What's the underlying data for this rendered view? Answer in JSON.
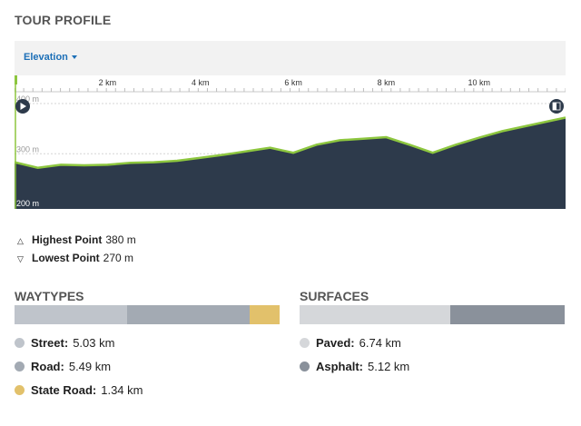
{
  "title": "TOUR PROFILE",
  "profile": {
    "dropdown_label": "Elevation",
    "x_ticks": [
      "2 km",
      "4 km",
      "6 km",
      "8 km",
      "10 km"
    ],
    "y_ticks": [
      "400 m",
      "300 m",
      "200 m"
    ],
    "icons": {
      "play": "play-icon",
      "finish": "finish-flag-icon"
    },
    "colors": {
      "fill": "#2d3a4b",
      "line": "#8dc63f",
      "line_highlight": "#e0c060"
    }
  },
  "stats": {
    "highest_label": "Highest Point",
    "highest_value": "380 m",
    "lowest_label": "Lowest Point",
    "lowest_value": "270 m"
  },
  "waytypes": {
    "title": "WAYTYPES",
    "items": [
      {
        "label": "Street:",
        "value": "5.03 km",
        "km": 5.03,
        "color": "#bfc4cb"
      },
      {
        "label": "Road:",
        "value": "5.49 km",
        "km": 5.49,
        "color": "#a3aab3"
      },
      {
        "label": "State Road:",
        "value": "1.34 km",
        "km": 1.34,
        "color": "#e2c16b"
      }
    ]
  },
  "surfaces": {
    "title": "SURFACES",
    "items": [
      {
        "label": "Paved:",
        "value": "6.74 km",
        "km": 6.74,
        "color": "#d5d7da"
      },
      {
        "label": "Asphalt:",
        "value": "5.12 km",
        "km": 5.12,
        "color": "#8a919b"
      }
    ]
  },
  "chart_data": {
    "type": "area",
    "xlabel": "",
    "ylabel": "",
    "xlim": [
      0,
      11.86
    ],
    "ylim": [
      190,
      420
    ],
    "x": [
      0,
      0.5,
      1,
      1.5,
      2,
      2.5,
      3,
      3.5,
      4,
      4.5,
      5,
      5.5,
      6,
      6.5,
      7,
      7.5,
      8,
      8.5,
      9,
      9.5,
      10,
      10.5,
      11,
      11.5,
      11.86
    ],
    "series": [
      {
        "values": [
          283,
          272,
          278,
          277,
          278,
          282,
          283,
          286,
          292,
          298,
          305,
          312,
          302,
          318,
          327,
          330,
          333,
          318,
          302,
          318,
          332,
          345,
          355,
          365,
          372
        ]
      }
    ]
  }
}
